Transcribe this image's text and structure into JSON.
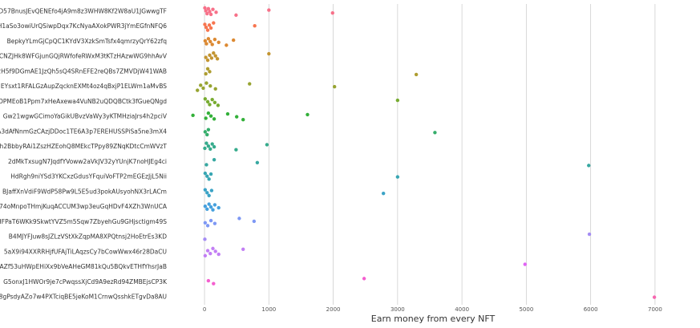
{
  "chart_data": {
    "type": "strip",
    "xlabel": "Earn money from every NFT",
    "categories": [
      "D57BnusJEvQENEfo4jA9m8z3WHW8Kf2W8aU1JGwwgTF",
      "H1aSo3owiUrQSiwpDqx7KcNyaAXokPWR3jYmEGfnNFQ6",
      "BepkyYLmGjCpQC1KYdV3XzkSmTsfx4qmrzyQrY62zfq",
      "9CNZJHk8WFGjunGQjRWfofeRWxM3tKTzHAzwWG9hhAvV",
      "A2H5f9DGmAE1JzQh5sQ4SRnEFE2reQBs7ZMVDjW41WAB",
      "EYsxt1RFALGzAupZqcknEXMt4oz4qBxjP1ELWm1aMvBS",
      "14DPMEoB1Ppm7xHeAxewa4VuNB2uQDQBCtk3fGueQNgd",
      "Gw21wgwGCimoYaGikUBvzVaWy3yKTMHziaJrs4h2pciV",
      "A3dAfNnmGzCAzjDDoc1TE6A3p7EREHUSSPiSa5ne3mX4",
      "Gh2BbbyRAi1ZszHZEohQ8MEkcTPpy89ZNqKDtcCmWVzT",
      "2dMkTxsugN7JqdfYVoww2aVkJV32yYUnjK7noHJEg4ci",
      "HdRgh9niYSd3YKCxzGdusYFquiVoFTP2mEGEzJjL5Nii",
      "BJaffXnVdiF9WdP58Pw9L5E5ud3pokAUsyohNX3rLACm",
      "CZk74oMnpoTHmjKuqACCUM3wp3euGqHDvF4XZh3WnUCA",
      "HFPaT6WKk9SkwtYVZ5m5Sqw7ZbyehGu9GHjsctigm49S",
      "B4MJYFJuw8sJZLzVStXkZqpMA8XPQtnsj2HoEtrEs3KD",
      "5aX9i94XXRRHjfUFAjTiLAqzsCy7bCowWwx46r28DaCU",
      "AZf53uHWpEHiXx9bVeAHeGM81kQu5BQkvETHfYhsrJaB",
      "G5onxJ1HWOr9je7cPwqssXjCd9A9ezRd94ZMBEjsCP3K",
      "8gPsdyAZo7w4PXTciqBE5jeKoM1CrnwQsshkETgvDa8AU"
    ],
    "values": [
      [
        5,
        20,
        40,
        60,
        80,
        100,
        130,
        180,
        490,
        1000,
        1990
      ],
      [
        5,
        25,
        50,
        75,
        100,
        140,
        780
      ],
      [
        10,
        30,
        60,
        90,
        120,
        160,
        220,
        340,
        450
      ],
      [
        20,
        50,
        80,
        110,
        140,
        170,
        200,
        1000
      ],
      [
        20,
        50,
        80,
        3290
      ],
      [
        -110,
        -60,
        -20,
        30,
        90,
        170,
        700,
        2020
      ],
      [
        10,
        50,
        80,
        120,
        160,
        210,
        3000
      ],
      [
        -180,
        20,
        60,
        100,
        150,
        360,
        500,
        600,
        1600
      ],
      [
        10,
        40,
        60,
        3580
      ],
      [
        5,
        30,
        60,
        90,
        120,
        150,
        490,
        970
      ],
      [
        30,
        150,
        820,
        5970
      ],
      [
        10,
        40,
        70,
        100,
        3000
      ],
      [
        10,
        40,
        70,
        110,
        2780
      ],
      [
        10,
        40,
        70,
        100,
        130,
        160,
        220
      ],
      [
        10,
        50,
        100,
        160,
        540,
        770
      ],
      [
        5,
        5980
      ],
      [
        10,
        50,
        90,
        130,
        170,
        220,
        600
      ],
      [
        4980
      ],
      [
        60,
        140,
        2480
      ],
      [
        6990
      ]
    ],
    "colors": [
      "#f77189",
      "#f7754f",
      "#dc8932",
      "#c39532",
      "#ae9d31",
      "#97a431",
      "#77ab31",
      "#33b039",
      "#35ad6b",
      "#36ab8c",
      "#37a8a1",
      "#38a6b3",
      "#3ba3c6",
      "#46a0dd",
      "#7e98f4",
      "#a48cf4",
      "#c27ff4",
      "#e064f4",
      "#f45fcf",
      "#f668b0"
    ],
    "xlim": [
      -250,
      7350
    ],
    "xticks": [
      0,
      1000,
      2000,
      3000,
      4000,
      5000,
      6000,
      7000
    ],
    "grid": true
  }
}
